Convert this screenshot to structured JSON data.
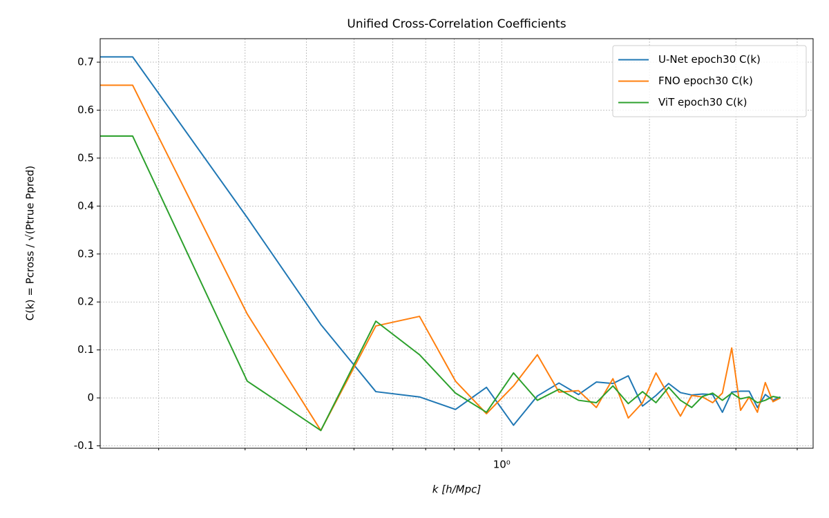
{
  "chart_data": {
    "type": "line",
    "title": "Unified Cross-Correlation Coefficients",
    "xlabel": "k [h/Mpc]",
    "ylabel": "C(k) = Pcross / √(Ptrue Ppred)",
    "xscale": "log",
    "grid": true,
    "legend": "upper right",
    "x": [
      0.152,
      0.177,
      0.303,
      0.428,
      0.554,
      0.68,
      0.805,
      0.931,
      1.057,
      1.182,
      1.308,
      1.434,
      1.559,
      1.685,
      1.811,
      1.936,
      2.062,
      2.188,
      2.313,
      2.439,
      2.565,
      2.69,
      2.816,
      2.942,
      3.067,
      3.193,
      3.319,
      3.444,
      3.57,
      3.696
    ],
    "series": [
      {
        "name": "U-Net epoch30 C(k)",
        "color": "#1f77b4",
        "values": [
          0.711,
          0.711,
          0.376,
          0.153,
          0.013,
          0.002,
          -0.024,
          0.022,
          -0.057,
          0.004,
          0.031,
          0.007,
          0.033,
          0.03,
          0.046,
          -0.017,
          0.005,
          0.03,
          0.011,
          0.006,
          0.008,
          0.007,
          -0.03,
          0.012,
          0.014,
          0.014,
          -0.02,
          0.007,
          -0.005,
          0.002
        ]
      },
      {
        "name": "FNO epoch30 C(k)",
        "color": "#ff7f0e",
        "values": [
          0.652,
          0.652,
          0.175,
          -0.068,
          0.15,
          0.17,
          0.035,
          -0.033,
          0.025,
          0.09,
          0.012,
          0.015,
          -0.02,
          0.04,
          -0.042,
          -0.01,
          0.052,
          0.005,
          -0.038,
          0.005,
          0.002,
          -0.01,
          0.01,
          0.104,
          -0.026,
          0.002,
          -0.03,
          0.032,
          -0.008,
          0.0
        ]
      },
      {
        "name": "ViT epoch30 C(k)",
        "color": "#2ca02c",
        "values": [
          0.546,
          0.546,
          0.035,
          -0.068,
          0.16,
          0.09,
          0.01,
          -0.03,
          0.052,
          -0.005,
          0.018,
          -0.005,
          -0.01,
          0.025,
          -0.012,
          0.013,
          -0.01,
          0.022,
          -0.005,
          -0.02,
          0.003,
          0.01,
          -0.005,
          0.01,
          -0.002,
          0.002,
          -0.01,
          -0.005,
          0.003,
          0.0
        ]
      }
    ],
    "xlim": [
      0.152,
      4.31
    ],
    "xticks": [
      {
        "value": 1,
        "label": "10⁰"
      }
    ],
    "xminorticks": [
      0.2,
      0.3,
      0.4,
      0.5,
      0.6,
      0.7,
      0.8,
      0.9,
      2,
      3,
      4
    ],
    "ylim": [
      -0.105,
      0.749
    ],
    "yticks": [
      -0.1,
      0.0,
      0.1,
      0.2,
      0.3,
      0.4,
      0.5,
      0.6,
      0.7
    ]
  }
}
